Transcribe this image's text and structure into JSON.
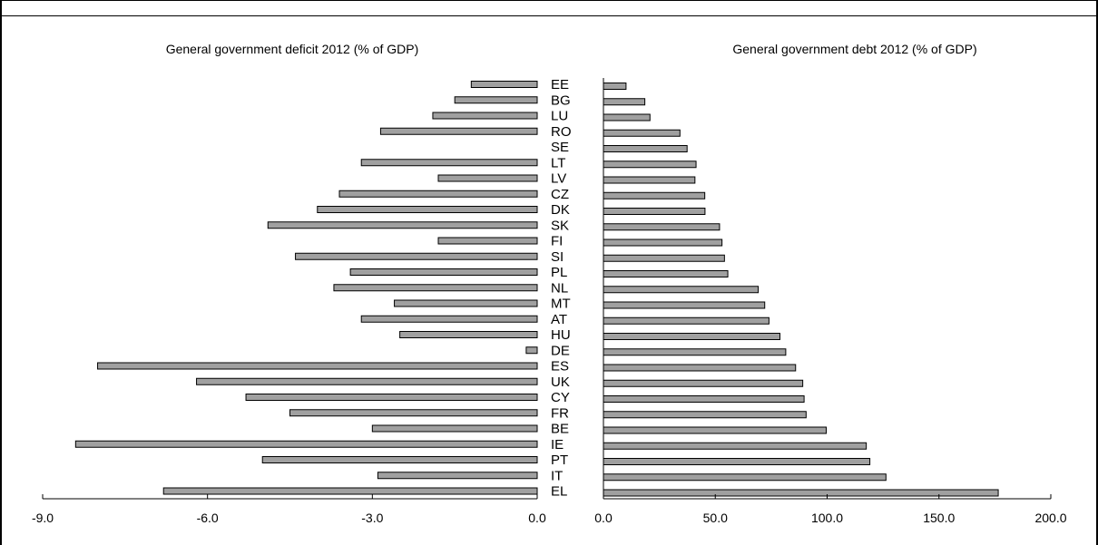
{
  "chart_data": [
    {
      "type": "bar",
      "orientation": "horizontal",
      "title": "General government deficit 2012 (% of GDP)",
      "xlabel": "",
      "ylabel": "",
      "xlim": [
        -9.0,
        0.0
      ],
      "xticks": [
        "-9.0",
        "-6.0",
        "-3.0",
        "0.0"
      ],
      "xtick_values": [
        -9,
        -6,
        -3,
        0
      ],
      "categories": [
        "EE",
        "BG",
        "LU",
        "RO",
        "SE",
        "LT",
        "LV",
        "CZ",
        "DK",
        "SK",
        "FI",
        "SI",
        "PL",
        "NL",
        "MT",
        "AT",
        "HU",
        "DE",
        "ES",
        "UK",
        "CY",
        "FR",
        "BE",
        "IE",
        "PT",
        "IT",
        "EL"
      ],
      "values": [
        -1.2,
        -1.5,
        -1.9,
        -2.85,
        0.0,
        -3.2,
        -1.8,
        -3.6,
        -4.0,
        -4.9,
        -1.8,
        -4.4,
        -3.4,
        -3.7,
        -2.6,
        -3.2,
        -2.5,
        -0.2,
        -8.0,
        -6.2,
        -5.3,
        -4.5,
        -3.0,
        -8.4,
        -5.0,
        -2.9,
        -6.8
      ],
      "bar_color": "#a0a0a0",
      "grid": false
    },
    {
      "type": "bar",
      "orientation": "horizontal",
      "title": "General government debt 2012 (% of GDP)",
      "xlabel": "",
      "ylabel": "",
      "xlim": [
        0.0,
        200.0
      ],
      "xticks": [
        "0.0",
        "50.0",
        "100.0",
        "150.0",
        "200.0"
      ],
      "xtick_values": [
        0,
        50,
        100,
        150,
        200
      ],
      "categories": [
        "EE",
        "BG",
        "LU",
        "RO",
        "SE",
        "LT",
        "LV",
        "CZ",
        "DK",
        "SK",
        "FI",
        "SI",
        "PL",
        "NL",
        "MT",
        "AT",
        "HU",
        "DE",
        "ES",
        "UK",
        "CY",
        "FR",
        "BE",
        "IE",
        "PT",
        "IT",
        "EL"
      ],
      "values": [
        10.1,
        18.5,
        20.8,
        34.2,
        37.4,
        41.4,
        40.9,
        45.3,
        45.4,
        51.9,
        53.0,
        54.1,
        55.6,
        69.2,
        72.1,
        74.0,
        78.9,
        81.5,
        85.9,
        89.1,
        89.7,
        90.6,
        99.6,
        117.5,
        119.1,
        126.3,
        176.5
      ],
      "bar_color": "#a0a0a0",
      "grid": false
    }
  ]
}
